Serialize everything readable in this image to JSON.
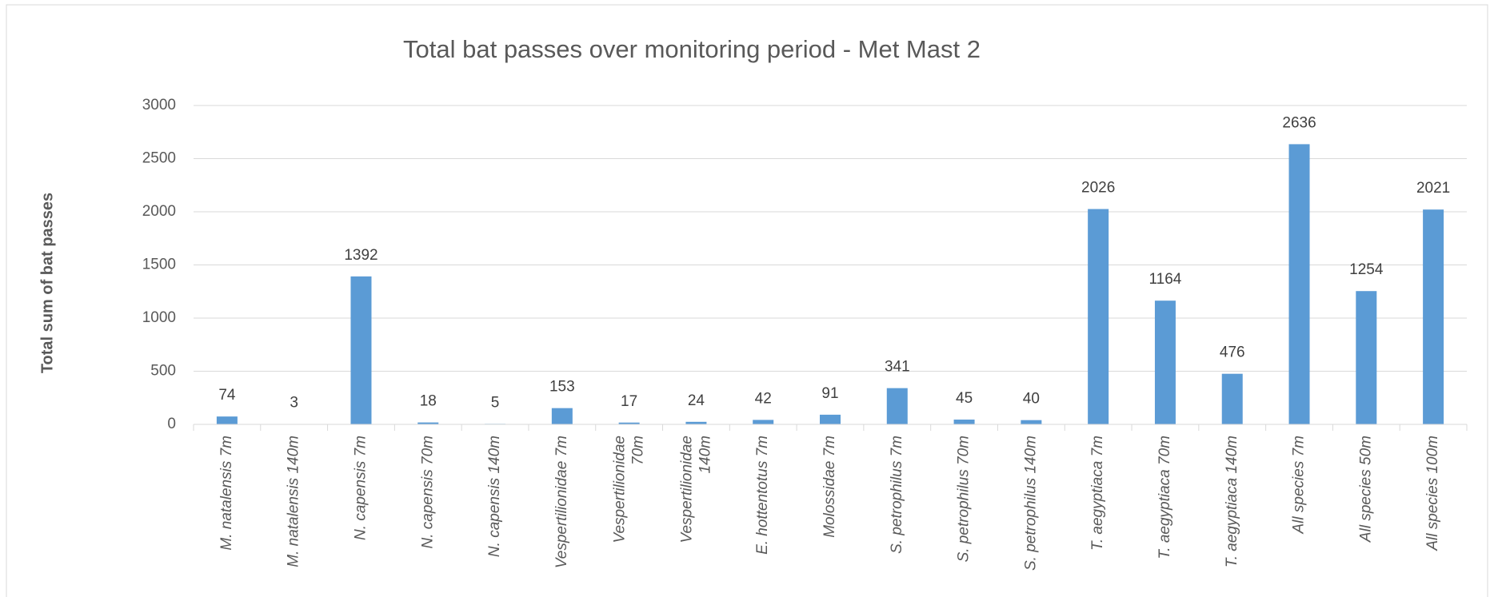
{
  "chart_data": {
    "type": "bar",
    "title": "Total bat passes over monitoring period - Met Mast 2",
    "y_label": "Total sum of bat passes",
    "categories": [
      "M. natalensis 7m",
      "M. natalensis 140m",
      "N. capensis 7m",
      "N. capensis 70m",
      "N. capensis 140m",
      "Vespertilionidae 7m",
      "Vespertilionidae 70m",
      "Vespertilionidae 140m",
      "E. hottentotus 7m",
      "Molossidae 7m",
      "S. petrophilus 7m",
      "S. petrophilus 70m",
      "S. petrophilus 140m",
      "T. aegyptiaca 7m",
      "T. aegyptiaca 70m",
      "T. aegyptiaca 140m",
      "All species 7m",
      "All species 50m",
      "All species 100m"
    ],
    "values": [
      74,
      3,
      1392,
      18,
      5,
      153,
      17,
      24,
      42,
      91,
      341,
      45,
      40,
      2026,
      1164,
      476,
      2636,
      1254,
      2021
    ],
    "color": "#5b9bd5",
    "ylim": [
      0,
      3000
    ],
    "yticks": [
      0,
      500,
      1000,
      1500,
      2000,
      2500,
      3000
    ],
    "grid": true
  }
}
